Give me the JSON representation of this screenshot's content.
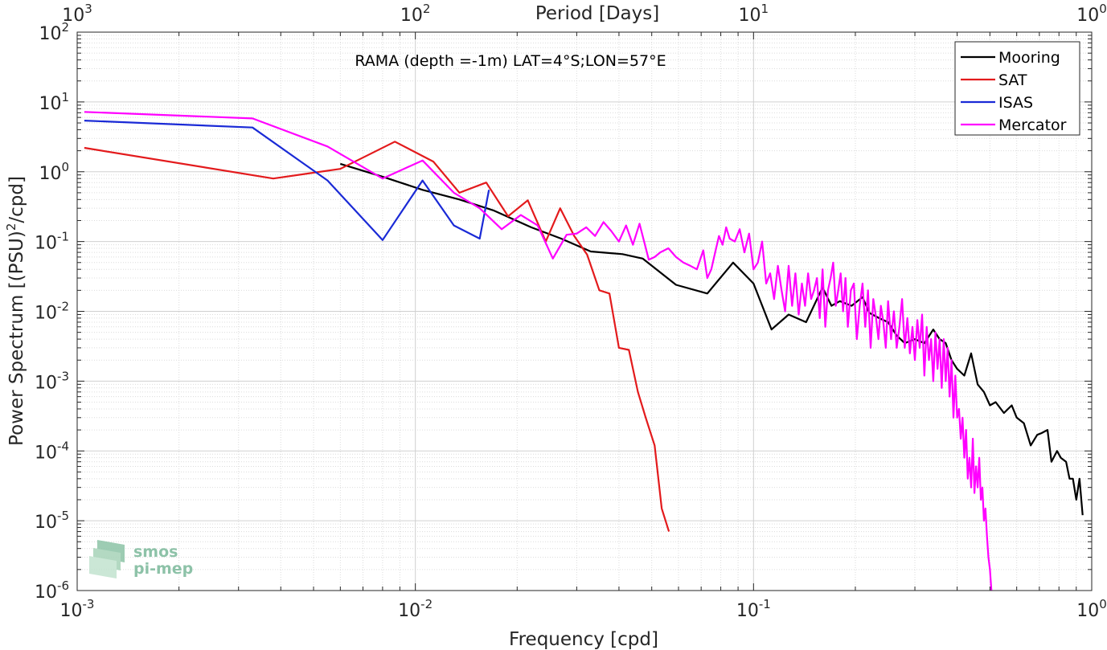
{
  "chart_data": {
    "type": "line",
    "title": "RAMA (depth =-1m) LAT=4°S;LON=57°E",
    "xlabel": "Frequency [cpd]",
    "ylabel": "Power Spectrum [(PSU)^2/cpd]",
    "top_xlabel": "Period [Days]",
    "x_scale": "log",
    "y_scale": "log",
    "xlim": [
      0.001,
      1
    ],
    "ylim": [
      1e-06,
      100
    ],
    "x_ticks": [
      0.001,
      0.01,
      0.1,
      1
    ],
    "x_tick_labels": [
      {
        "base": "10",
        "exp": "-3"
      },
      {
        "base": "10",
        "exp": "-2"
      },
      {
        "base": "10",
        "exp": "-1"
      },
      {
        "base": "10",
        "exp": "0"
      }
    ],
    "top_x_tick_labels": [
      {
        "base": "10",
        "exp": "3"
      },
      {
        "base": "10",
        "exp": "2"
      },
      {
        "base": "10",
        "exp": "1"
      },
      {
        "base": "10",
        "exp": "0"
      }
    ],
    "y_ticks": [
      1e-06,
      1e-05,
      0.0001,
      0.001,
      0.01,
      0.1,
      1,
      10,
      100
    ],
    "y_tick_labels": [
      {
        "base": "10",
        "exp": "-6"
      },
      {
        "base": "10",
        "exp": "-5"
      },
      {
        "base": "10",
        "exp": "-4"
      },
      {
        "base": "10",
        "exp": "-3"
      },
      {
        "base": "10",
        "exp": "-2"
      },
      {
        "base": "10",
        "exp": "-1"
      },
      {
        "base": "10",
        "exp": "0"
      },
      {
        "base": "10",
        "exp": "1"
      },
      {
        "base": "10",
        "exp": "2"
      }
    ],
    "grid": true,
    "legend_position": "top-right",
    "series": [
      {
        "name": "Mooring",
        "color": "#000000",
        "x": [
          0.006,
          0.008,
          0.0105,
          0.0135,
          0.017,
          0.022,
          0.027,
          0.033,
          0.041,
          0.047,
          0.059,
          0.073,
          0.087,
          0.1,
          0.113,
          0.127,
          0.143,
          0.16,
          0.17,
          0.18,
          0.195,
          0.21,
          0.22,
          0.235,
          0.25,
          0.265,
          0.28,
          0.3,
          0.32,
          0.34,
          0.355,
          0.37,
          0.385,
          0.4,
          0.42,
          0.44,
          0.46,
          0.48,
          0.5,
          0.52,
          0.55,
          0.58,
          0.6,
          0.63,
          0.66,
          0.69,
          0.71,
          0.74,
          0.76,
          0.79,
          0.81,
          0.84,
          0.86,
          0.88,
          0.9,
          0.92,
          0.94
        ],
        "y": [
          1.3,
          0.85,
          0.55,
          0.4,
          0.28,
          0.16,
          0.11,
          0.072,
          0.066,
          0.057,
          0.024,
          0.018,
          0.05,
          0.025,
          0.0055,
          0.009,
          0.007,
          0.022,
          0.012,
          0.014,
          0.012,
          0.016,
          0.0095,
          0.008,
          0.007,
          0.0045,
          0.0035,
          0.004,
          0.0035,
          0.0055,
          0.004,
          0.0035,
          0.002,
          0.0015,
          0.0012,
          0.0025,
          0.0009,
          0.0007,
          0.00045,
          0.0005,
          0.00035,
          0.00045,
          0.0003,
          0.00025,
          0.00012,
          0.00017,
          0.00018,
          0.0002,
          7e-05,
          0.0001,
          8e-05,
          7e-05,
          4e-05,
          4e-05,
          2e-05,
          4e-05,
          1.2e-05
        ]
      },
      {
        "name": "SAT",
        "color": "#e31a1c",
        "x": [
          0.00105,
          0.0038,
          0.006,
          0.0087,
          0.0113,
          0.0135,
          0.0162,
          0.0188,
          0.0215,
          0.0243,
          0.0268,
          0.0295,
          0.0322,
          0.035,
          0.0375,
          0.04,
          0.0428,
          0.0455,
          0.048,
          0.051,
          0.0535,
          0.0562
        ],
        "y": [
          2.2,
          0.8,
          1.1,
          2.7,
          1.4,
          0.5,
          0.7,
          0.23,
          0.39,
          0.1,
          0.3,
          0.12,
          0.065,
          0.02,
          0.018,
          0.003,
          0.0028,
          0.0007,
          0.0003,
          0.00012,
          1.5e-05,
          7e-06
        ]
      },
      {
        "name": "ISAS",
        "color": "#1a2ad6",
        "x": [
          0.00105,
          0.0033,
          0.0055,
          0.008,
          0.0105,
          0.013,
          0.0155,
          0.0165
        ],
        "y": [
          5.4,
          4.3,
          0.75,
          0.105,
          0.75,
          0.17,
          0.11,
          0.55
        ]
      },
      {
        "name": "Mercator",
        "color": "#ff00ff",
        "x": [
          0.00105,
          0.0033,
          0.0055,
          0.008,
          0.0105,
          0.013,
          0.0155,
          0.018,
          0.0205,
          0.023,
          0.0255,
          0.028,
          0.03,
          0.032,
          0.034,
          0.036,
          0.038,
          0.04,
          0.042,
          0.044,
          0.046,
          0.049,
          0.051,
          0.053,
          0.056,
          0.059,
          0.062,
          0.065,
          0.068,
          0.071,
          0.073,
          0.075,
          0.077,
          0.079,
          0.081,
          0.083,
          0.085,
          0.088,
          0.091,
          0.094,
          0.097,
          0.1,
          0.103,
          0.106,
          0.109,
          0.112,
          0.115,
          0.118,
          0.121,
          0.124,
          0.127,
          0.13,
          0.133,
          0.136,
          0.139,
          0.142,
          0.145,
          0.148,
          0.151,
          0.154,
          0.157,
          0.16,
          0.163,
          0.166,
          0.169,
          0.172,
          0.175,
          0.178,
          0.181,
          0.184,
          0.187,
          0.19,
          0.194,
          0.198,
          0.202,
          0.206,
          0.21,
          0.214,
          0.218,
          0.222,
          0.226,
          0.23,
          0.234,
          0.238,
          0.242,
          0.246,
          0.25,
          0.255,
          0.26,
          0.265,
          0.27,
          0.275,
          0.28,
          0.285,
          0.29,
          0.295,
          0.3,
          0.305,
          0.31,
          0.315,
          0.32,
          0.325,
          0.33,
          0.335,
          0.34,
          0.345,
          0.35,
          0.355,
          0.36,
          0.365,
          0.37,
          0.375,
          0.38,
          0.385,
          0.39,
          0.395,
          0.4,
          0.405,
          0.41,
          0.415,
          0.42,
          0.425,
          0.43,
          0.435,
          0.44,
          0.445,
          0.45,
          0.455,
          0.46,
          0.465,
          0.47,
          0.475,
          0.48,
          0.485,
          0.49,
          0.495,
          0.5,
          0.505
        ],
        "y": [
          7.2,
          5.8,
          2.3,
          0.8,
          1.45,
          0.5,
          0.3,
          0.15,
          0.24,
          0.17,
          0.057,
          0.125,
          0.13,
          0.16,
          0.12,
          0.19,
          0.14,
          0.1,
          0.17,
          0.09,
          0.18,
          0.055,
          0.06,
          0.07,
          0.08,
          0.06,
          0.05,
          0.045,
          0.04,
          0.075,
          0.03,
          0.04,
          0.07,
          0.12,
          0.09,
          0.16,
          0.11,
          0.1,
          0.15,
          0.07,
          0.13,
          0.04,
          0.05,
          0.1,
          0.025,
          0.035,
          0.015,
          0.045,
          0.02,
          0.01,
          0.045,
          0.012,
          0.035,
          0.009,
          0.025,
          0.012,
          0.035,
          0.015,
          0.02,
          0.03,
          0.008,
          0.04,
          0.006,
          0.02,
          0.03,
          0.05,
          0.012,
          0.02,
          0.035,
          0.01,
          0.03,
          0.006,
          0.02,
          0.025,
          0.004,
          0.012,
          0.025,
          0.006,
          0.02,
          0.003,
          0.015,
          0.0085,
          0.004,
          0.012,
          0.007,
          0.003,
          0.014,
          0.004,
          0.01,
          0.003,
          0.006,
          0.015,
          0.003,
          0.008,
          0.0025,
          0.006,
          0.002,
          0.0075,
          0.003,
          0.009,
          0.0012,
          0.006,
          0.002,
          0.004,
          0.001,
          0.005,
          0.0015,
          0.004,
          0.0008,
          0.004,
          0.001,
          0.003,
          0.0006,
          0.002,
          0.0003,
          0.0012,
          0.0003,
          0.0004,
          0.00015,
          0.0003,
          8e-05,
          0.0002,
          4e-05,
          8e-05,
          3e-05,
          0.00015,
          2.5e-05,
          6e-05,
          3e-05,
          8e-05,
          2e-05,
          3e-05,
          1e-05,
          1.5e-05,
          6e-06,
          3e-06,
          2e-06,
          1e-06
        ]
      }
    ]
  },
  "logo": {
    "line1": "smos",
    "line2": "pi-mep"
  }
}
